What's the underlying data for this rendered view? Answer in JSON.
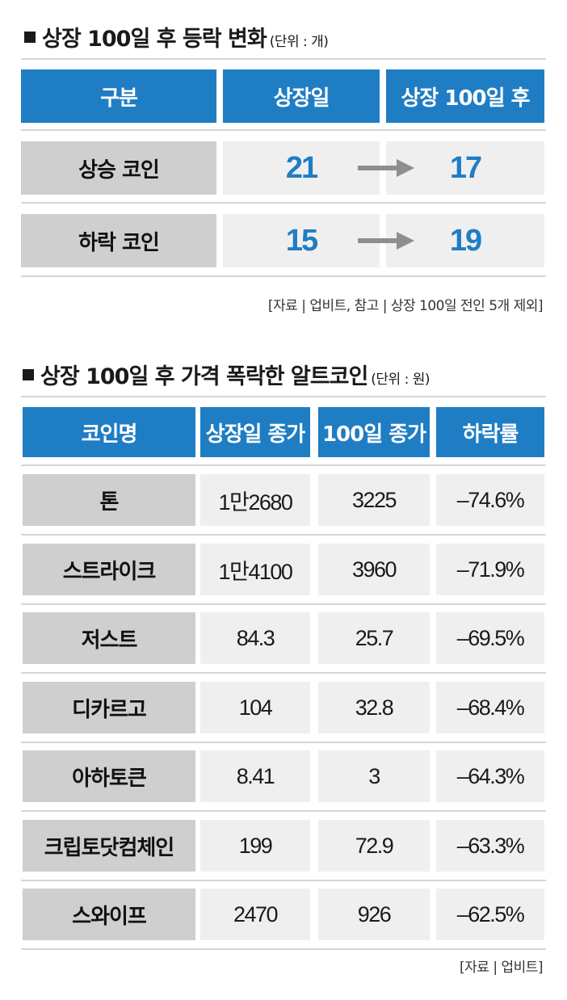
{
  "section1": {
    "title": "상장 100일 후 등락 변화",
    "unit": "(단위 : 개)",
    "headers": [
      "구분",
      "상장일",
      "상장 100일 후"
    ],
    "rows": [
      {
        "label": "상승 코인",
        "listing_day": "21",
        "after_100": "17"
      },
      {
        "label": "하락 코인",
        "listing_day": "15",
        "after_100": "19"
      }
    ],
    "source": "[자료 | 업비트, 참고 | 상장 100일 전인 5개 제외]",
    "icons": [
      "arrow-right-icon"
    ]
  },
  "section2": {
    "title": "상장 100일 후 가격 폭락한 알트코인",
    "unit": "(단위 : 원)",
    "headers": [
      "코인명",
      "상장일 종가",
      "100일 종가",
      "하락률"
    ],
    "rows": [
      {
        "name": "톤",
        "listing_close": "1만2680",
        "close_100": "3225",
        "drop": "–74.6%"
      },
      {
        "name": "스트라이크",
        "listing_close": "1만4100",
        "close_100": "3960",
        "drop": "–71.9%"
      },
      {
        "name": "저스트",
        "listing_close": "84.3",
        "close_100": "25.7",
        "drop": "–69.5%"
      },
      {
        "name": "디카르고",
        "listing_close": "104",
        "close_100": "32.8",
        "drop": "–68.4%"
      },
      {
        "name": "아하토큰",
        "listing_close": "8.41",
        "close_100": "3",
        "drop": "–64.3%"
      },
      {
        "name": "크립토닷컴체인",
        "listing_close": "199",
        "close_100": "72.9",
        "drop": "–63.3%"
      },
      {
        "name": "스와이프",
        "listing_close": "2470",
        "close_100": "926",
        "drop": "–62.5%"
      }
    ],
    "source": "[자료 | 업비트]"
  },
  "colors": {
    "header_blue": "#1f7dc4",
    "label_gray": "#cfcfcf",
    "value_bg": "#efefef",
    "number_blue": "#1f7dc4"
  }
}
